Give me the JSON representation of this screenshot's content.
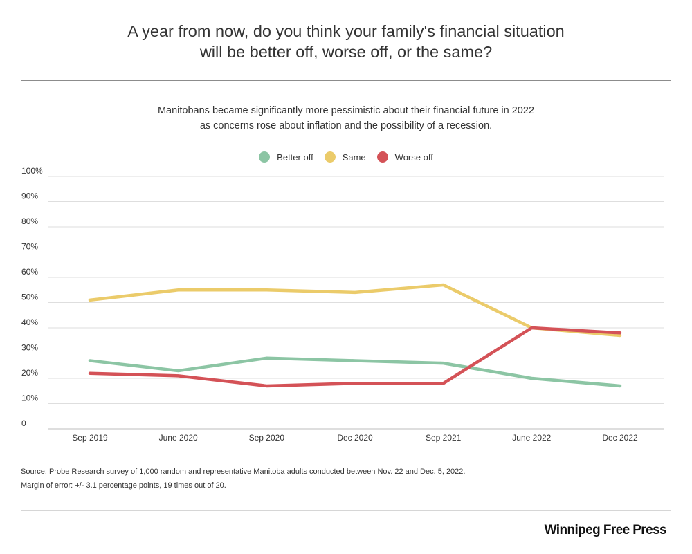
{
  "title_lines": [
    "A year from now, do you think your family's financial situation",
    "will be better off, worse off, or the same?"
  ],
  "subtitle_lines": [
    "Manitobans became significantly more pessimistic about their financial future in 2022",
    "as concerns rose about inflation and the possibility of a recession."
  ],
  "legend": [
    {
      "label": "Better off",
      "color": "#8cc5a4"
    },
    {
      "label": "Same",
      "color": "#ebcb6a"
    },
    {
      "label": "Worse off",
      "color": "#d45257"
    }
  ],
  "chart_data": {
    "type": "line",
    "categories": [
      "Sep 2019",
      "June 2020",
      "Sep 2020",
      "Dec 2020",
      "Sep 2021",
      "June 2022",
      "Dec 2022"
    ],
    "series": [
      {
        "name": "Better off",
        "color": "#8cc5a4",
        "values": [
          27,
          23,
          28,
          27,
          26,
          20,
          17
        ]
      },
      {
        "name": "Same",
        "color": "#ebcb6a",
        "values": [
          51,
          55,
          55,
          54,
          57,
          40,
          37
        ]
      },
      {
        "name": "Worse off",
        "color": "#d45257",
        "values": [
          22,
          21,
          17,
          18,
          18,
          40,
          38
        ]
      }
    ],
    "ylim": [
      0,
      100
    ],
    "y_ticks": [
      0,
      10,
      20,
      30,
      40,
      50,
      60,
      70,
      80,
      90,
      100
    ],
    "y_tick_labels": [
      "0",
      "10%",
      "20%",
      "30%",
      "40%",
      "50%",
      "60%",
      "70%",
      "80%",
      "90%",
      "100%"
    ],
    "grid": true,
    "legend_position": "top-center"
  },
  "footnotes": [
    "Source: Probe Research survey of 1,000 random and representative Manitoba adults conducted between Nov. 22 and Dec. 5, 2022.",
    "Margin of error: +/- 3.1 percentage points, 19 times out of 20."
  ],
  "brand": "Winnipeg Free Press"
}
